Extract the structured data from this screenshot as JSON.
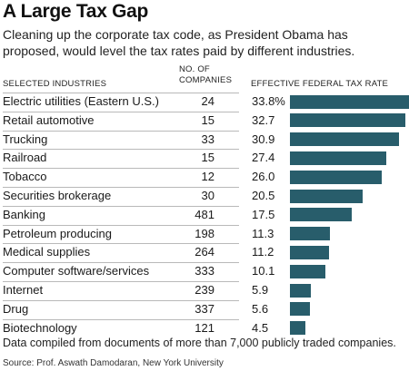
{
  "header": {
    "title": "A Large Tax Gap",
    "subtitle": "Cleaning up the corporate tax code, as President Obama has proposed, would level the tax rates paid by different industries."
  },
  "columns": {
    "industry": "SELECTED INDUSTRIES",
    "companies_line1": "NO. OF",
    "companies_line2": "COMPANIES",
    "rate": "EFFECTIVE FEDERAL TAX RATE"
  },
  "rows": [
    {
      "industry": "Electric utilities (Eastern U.S.)",
      "companies": "24",
      "rate": "33.8%"
    },
    {
      "industry": "Retail automotive",
      "companies": "15",
      "rate": "32.7"
    },
    {
      "industry": "Trucking",
      "companies": "33",
      "rate": "30.9"
    },
    {
      "industry": "Railroad",
      "companies": "15",
      "rate": "27.4"
    },
    {
      "industry": "Tobacco",
      "companies": "12",
      "rate": "26.0"
    },
    {
      "industry": "Securities brokerage",
      "companies": "30",
      "rate": "20.5"
    },
    {
      "industry": "Banking",
      "companies": "481",
      "rate": "17.5"
    },
    {
      "industry": "Petroleum producing",
      "companies": "198",
      "rate": "11.3"
    },
    {
      "industry": "Medical supplies",
      "companies": "264",
      "rate": "11.2"
    },
    {
      "industry": "Computer software/services",
      "companies": "333",
      "rate": "10.1"
    },
    {
      "industry": "Internet",
      "companies": "239",
      "rate": "5.9"
    },
    {
      "industry": "Drug",
      "companies": "337",
      "rate": "5.6"
    },
    {
      "industry": "Biotechnology",
      "companies": "121",
      "rate": "4.5"
    }
  ],
  "footnote": "Data compiled from documents of more than 7,000 publicly traded companies.",
  "source": "Source: Prof. Aswath Damodaran, New York University",
  "colors": {
    "bar": "#285d6b"
  },
  "chart_data": {
    "type": "bar",
    "orientation": "horizontal",
    "categories": [
      "Electric utilities (Eastern U.S.)",
      "Retail automotive",
      "Trucking",
      "Railroad",
      "Tobacco",
      "Securities brokerage",
      "Banking",
      "Petroleum producing",
      "Medical supplies",
      "Computer software/services",
      "Internet",
      "Drug",
      "Biotechnology"
    ],
    "values": [
      33.8,
      32.7,
      30.9,
      27.4,
      26.0,
      20.5,
      17.5,
      11.3,
      11.2,
      10.1,
      5.9,
      5.6,
      4.5
    ],
    "companies": [
      24,
      15,
      33,
      15,
      12,
      30,
      481,
      198,
      264,
      333,
      239,
      337,
      121
    ],
    "title": "A Large Tax Gap",
    "value_label": "EFFECTIVE FEDERAL TAX RATE",
    "unit": "%",
    "grid": false,
    "axes_visible": false
  }
}
